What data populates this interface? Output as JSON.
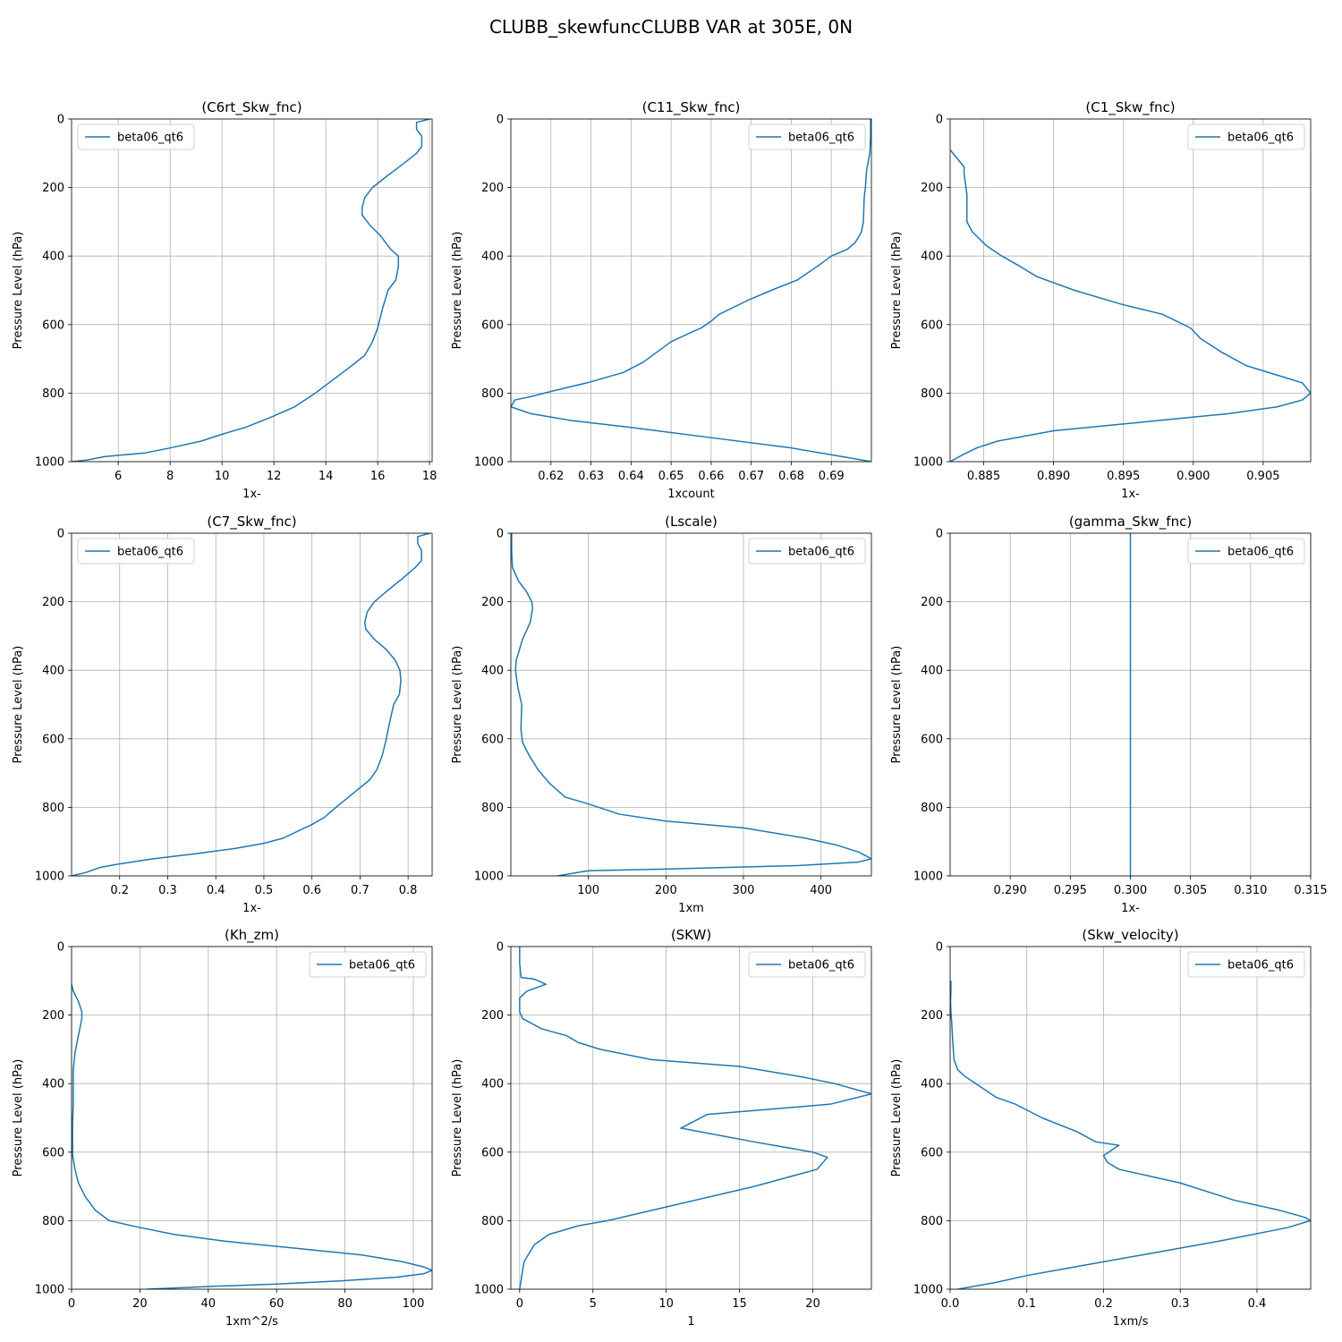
{
  "figure_title": "CLUBB_skewfuncCLUBB VAR at 305E, 0N",
  "colors": {
    "line": "#1f77b4",
    "grid": "#b0b0b0",
    "axis": "#000000",
    "legend_border": "#cccccc"
  },
  "chart_data": [
    {
      "type": "line",
      "title": "(C6rt_Skw_fnc)",
      "xlabel": "1x-",
      "ylabel": "Pressure Level (hPa)",
      "xlim": [
        4.2,
        18.1
      ],
      "xticks": [
        6,
        8,
        10,
        12,
        14,
        16,
        18
      ],
      "ylim": [
        1000,
        0
      ],
      "yticks": [
        0,
        200,
        400,
        600,
        800,
        1000
      ],
      "legend": "top-left",
      "series": [
        {
          "name": "beta06_qt6",
          "x": [
            18.0,
            17.5,
            17.5,
            17.7,
            17.7,
            17.5,
            17.0,
            16.3,
            15.8,
            15.5,
            15.4,
            15.4,
            15.7,
            16.1,
            16.5,
            16.8,
            16.8,
            16.7,
            16.4,
            16.2,
            16.0,
            15.8,
            15.5,
            15.0,
            14.3,
            13.6,
            12.8,
            11.9,
            10.9,
            10.0,
            9.2,
            8.0,
            7.0,
            5.5,
            4.8,
            4.2
          ],
          "y": [
            0,
            10,
            30,
            50,
            80,
            100,
            130,
            170,
            200,
            230,
            260,
            280,
            310,
            340,
            380,
            400,
            430,
            470,
            500,
            550,
            610,
            650,
            690,
            720,
            760,
            800,
            840,
            870,
            900,
            920,
            940,
            960,
            975,
            985,
            995,
            1000
          ]
        }
      ]
    },
    {
      "type": "line",
      "title": "(C11_Skw_fnc)",
      "xlabel": "1xcount",
      "ylabel": "Pressure Level (hPa)",
      "xlim": [
        0.61,
        0.7
      ],
      "xticks": [
        0.62,
        0.63,
        0.64,
        0.65,
        0.66,
        0.67,
        0.68,
        0.69
      ],
      "ylim": [
        1000,
        0
      ],
      "yticks": [
        0,
        200,
        400,
        600,
        800,
        1000
      ],
      "legend": "top-right",
      "series": [
        {
          "name": "beta06_qt6",
          "x": [
            0.6998,
            0.6998,
            0.6996,
            0.6988,
            0.6985,
            0.6982,
            0.698,
            0.6975,
            0.696,
            0.694,
            0.69,
            0.6865,
            0.6815,
            0.675,
            0.669,
            0.662,
            0.66,
            0.6575,
            0.6555,
            0.65,
            0.6465,
            0.643,
            0.638,
            0.629,
            0.62,
            0.615,
            0.611,
            0.61,
            0.615,
            0.625,
            0.64,
            0.66,
            0.68,
            0.695,
            0.7
          ],
          "y": [
            0,
            50,
            100,
            150,
            200,
            230,
            300,
            330,
            360,
            380,
            400,
            430,
            470,
            500,
            530,
            570,
            590,
            610,
            620,
            650,
            680,
            710,
            740,
            770,
            795,
            810,
            820,
            840,
            860,
            880,
            900,
            930,
            960,
            990,
            1000
          ]
        }
      ]
    },
    {
      "type": "line",
      "title": "(C1_Skw_fnc)",
      "xlabel": "1x-",
      "ylabel": "Pressure Level (hPa)",
      "xlim": [
        0.8826,
        0.9084
      ],
      "xticks": [
        0.885,
        0.89,
        0.895,
        0.9,
        0.905
      ],
      "ylim": [
        1000,
        0
      ],
      "yticks": [
        0,
        200,
        400,
        600,
        800,
        1000
      ],
      "legend": "top-right",
      "series": [
        {
          "name": "beta06_qt6",
          "x": [
            0.8826,
            0.883,
            0.8836,
            0.8836,
            0.8838,
            0.8838,
            0.8838,
            0.8842,
            0.8852,
            0.8863,
            0.8876,
            0.8888,
            0.8915,
            0.8948,
            0.8978,
            0.8998,
            0.9005,
            0.902,
            0.9038,
            0.9062,
            0.9078,
            0.9084,
            0.9078,
            0.906,
            0.9025,
            0.8975,
            0.89,
            0.886,
            0.8845,
            0.8835,
            0.8826
          ],
          "y": [
            90,
            110,
            140,
            160,
            220,
            260,
            300,
            330,
            370,
            400,
            430,
            460,
            500,
            540,
            570,
            610,
            640,
            680,
            720,
            750,
            770,
            800,
            820,
            840,
            860,
            880,
            910,
            940,
            960,
            980,
            1000
          ]
        }
      ]
    },
    {
      "type": "line",
      "title": "(C7_Skw_fnc)",
      "xlabel": "1x-",
      "ylabel": "Pressure Level (hPa)",
      "xlim": [
        0.1,
        0.85
      ],
      "xticks": [
        0.2,
        0.3,
        0.4,
        0.5,
        0.6,
        0.7,
        0.8
      ],
      "ylim": [
        1000,
        0
      ],
      "yticks": [
        0,
        200,
        400,
        600,
        800,
        1000
      ],
      "legend": "top-left",
      "series": [
        {
          "name": "beta06_qt6",
          "x": [
            0.845,
            0.82,
            0.82,
            0.828,
            0.828,
            0.815,
            0.79,
            0.755,
            0.73,
            0.715,
            0.71,
            0.712,
            0.73,
            0.755,
            0.773,
            0.783,
            0.785,
            0.782,
            0.77,
            0.762,
            0.753,
            0.746,
            0.735,
            0.72,
            0.685,
            0.65,
            0.625,
            0.6,
            0.57,
            0.54,
            0.5,
            0.44,
            0.36,
            0.27,
            0.2,
            0.16,
            0.13,
            0.1
          ],
          "y": [
            0,
            10,
            30,
            50,
            80,
            100,
            130,
            170,
            200,
            230,
            260,
            280,
            310,
            340,
            370,
            400,
            430,
            470,
            500,
            550,
            610,
            650,
            690,
            720,
            760,
            800,
            830,
            850,
            870,
            890,
            905,
            920,
            935,
            950,
            965,
            975,
            990,
            1000
          ]
        }
      ]
    },
    {
      "type": "line",
      "title": "(Lscale)",
      "xlabel": "1xm",
      "ylabel": "Pressure Level (hPa)",
      "xlim": [
        0,
        465
      ],
      "xticks": [
        100,
        200,
        300,
        400
      ],
      "ylim": [
        1000,
        0
      ],
      "yticks": [
        0,
        200,
        400,
        600,
        800,
        1000
      ],
      "legend": "top-right",
      "series": [
        {
          "name": "beta06_qt6",
          "x": [
            1,
            1,
            2,
            10,
            20,
            27,
            28,
            25,
            15,
            7,
            6,
            9,
            14,
            13,
            15,
            24,
            35,
            50,
            70,
            100,
            140,
            200,
            300,
            380,
            420,
            448,
            465,
            448,
            370,
            200,
            100,
            60
          ],
          "y": [
            0,
            50,
            100,
            140,
            170,
            200,
            220,
            260,
            310,
            370,
            400,
            450,
            500,
            570,
            610,
            650,
            690,
            730,
            770,
            790,
            820,
            840,
            860,
            890,
            910,
            930,
            950,
            960,
            970,
            980,
            985,
            1000
          ]
        }
      ]
    },
    {
      "type": "line",
      "title": "(gamma_Skw_fnc)",
      "xlabel": "1x-",
      "ylabel": "Pressure Level (hPa)",
      "xlim": [
        0.285,
        0.315
      ],
      "xticks": [
        0.29,
        0.295,
        0.3,
        0.305,
        0.31,
        0.315
      ],
      "ylim": [
        1000,
        0
      ],
      "yticks": [
        0,
        200,
        400,
        600,
        800,
        1000
      ],
      "legend": "top-right",
      "series": [
        {
          "name": "beta06_qt6",
          "x": [
            0.3,
            0.3
          ],
          "y": [
            0,
            1000
          ]
        }
      ]
    },
    {
      "type": "line",
      "title": "(Kh_zm)",
      "xlabel": "1xm^2/s",
      "ylabel": "Pressure Level (hPa)",
      "xlim": [
        0,
        105.5
      ],
      "xticks": [
        0,
        20,
        40,
        60,
        80,
        100
      ],
      "ylim": [
        1000,
        0
      ],
      "yticks": [
        0,
        200,
        400,
        600,
        800,
        1000
      ],
      "legend": "top-right",
      "series": [
        {
          "name": "beta06_qt6",
          "x": [
            0,
            0.5,
            2,
            3,
            3,
            2,
            1,
            0.5,
            0.5,
            0.5,
            0.3,
            0.3,
            1,
            2,
            4,
            7,
            11,
            20,
            30,
            45,
            65,
            85,
            97,
            103,
            105.5,
            103,
            95,
            80,
            60,
            40,
            22
          ],
          "y": [
            110,
            130,
            160,
            190,
            210,
            260,
            310,
            360,
            410,
            460,
            510,
            610,
            650,
            690,
            730,
            770,
            800,
            820,
            840,
            860,
            880,
            900,
            920,
            935,
            945,
            955,
            965,
            975,
            985,
            992,
            1000
          ]
        }
      ]
    },
    {
      "type": "line",
      "title": "(SKW)",
      "xlabel": "1",
      "ylabel": "Pressure Level (hPa)",
      "xlim": [
        -0.6,
        24
      ],
      "xticks": [
        0,
        5,
        10,
        15,
        20
      ],
      "ylim": [
        1000,
        0
      ],
      "yticks": [
        0,
        200,
        400,
        600,
        800,
        1000
      ],
      "legend": "top-right",
      "series": [
        {
          "name": "beta06_qt6",
          "x": [
            0,
            0,
            0.1,
            1.0,
            1.8,
            0.5,
            0,
            0,
            0.2,
            1.5,
            3.2,
            4,
            5.5,
            9,
            15,
            19.2,
            21.5,
            24,
            21.2,
            12.8,
            11,
            16,
            20,
            21,
            20.3,
            16,
            11,
            6,
            4,
            2,
            1,
            0.3,
            0
          ],
          "y": [
            0,
            50,
            90,
            95,
            110,
            130,
            150,
            190,
            210,
            240,
            260,
            280,
            300,
            330,
            350,
            380,
            400,
            430,
            460,
            490,
            530,
            570,
            600,
            615,
            650,
            700,
            750,
            800,
            815,
            840,
            870,
            920,
            1000
          ]
        }
      ]
    },
    {
      "type": "line",
      "title": "(Skw_velocity)",
      "xlabel": "1xm/s",
      "ylabel": "Pressure Level (hPa)",
      "xlim": [
        0,
        0.47
      ],
      "xticks": [
        0,
        0.1,
        0.2,
        0.3,
        0.4
      ],
      "ylim": [
        1000,
        0
      ],
      "yticks": [
        0,
        200,
        400,
        600,
        800,
        1000
      ],
      "legend": "top-right",
      "series": [
        {
          "name": "beta06_qt6",
          "x": [
            0.001,
            0.001,
            0.0005,
            0.001,
            0.002,
            0.003,
            0.005,
            0.01,
            0.02,
            0.04,
            0.06,
            0.085,
            0.12,
            0.165,
            0.19,
            0.22,
            0.2,
            0.205,
            0.22,
            0.3,
            0.37,
            0.43,
            0.462,
            0.47,
            0.44,
            0.35,
            0.25,
            0.15,
            0.1,
            0.06,
            0.01
          ],
          "y": [
            100,
            130,
            160,
            190,
            220,
            260,
            330,
            360,
            380,
            410,
            440,
            460,
            500,
            540,
            570,
            580,
            610,
            630,
            650,
            690,
            740,
            770,
            790,
            800,
            820,
            860,
            900,
            940,
            960,
            980,
            1000
          ]
        }
      ]
    }
  ]
}
